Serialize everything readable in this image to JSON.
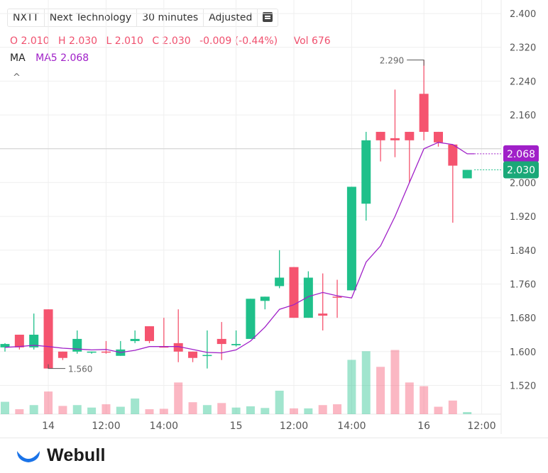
{
  "toolbar": {
    "symbol": "NXTT",
    "name": "Next Technology",
    "interval": "30 minutes",
    "adjust": "Adjusted",
    "menu_icon": "menu-icon"
  },
  "ohlc": {
    "open": "O 2.010",
    "high": "H 2.030",
    "low": "L 2.010",
    "close": "C 2.030",
    "change": "-0.009 (-0.44%)",
    "volume": "Vol 676"
  },
  "ma": {
    "label": "MA",
    "value": "MA5 2.068"
  },
  "collapse_icon": "chevron-up-icon",
  "price_tags": {
    "ma5": "2.068",
    "last": "2.030"
  },
  "annotations": {
    "high": "2.290",
    "low": "1.560"
  },
  "logo": {
    "text": "Webull",
    "icon": "webull-logo-icon"
  },
  "colors": {
    "up": "#1fc08a",
    "down": "#f5546f",
    "ma5": "#a020c8"
  },
  "chart_data": {
    "type": "candlestick",
    "y_ticks": [
      "2.400",
      "2.320",
      "2.240",
      "2.160",
      "2.080",
      "2.000",
      "1.920",
      "1.840",
      "1.760",
      "1.680",
      "1.600",
      "1.520"
    ],
    "ylim": [
      1.452,
      2.432
    ],
    "x_ticks": [
      {
        "label": "14",
        "index": 3
      },
      {
        "label": "12:00",
        "index": 7
      },
      {
        "label": "14:00",
        "index": 11
      },
      {
        "label": "15",
        "index": 16
      },
      {
        "label": "12:00",
        "index": 20
      },
      {
        "label": "14:00",
        "index": 24
      },
      {
        "label": "16",
        "index": 29
      },
      {
        "label": "12:00",
        "index": 33
      }
    ],
    "candles": [
      {
        "o": 1.61,
        "h": 1.62,
        "l": 1.6,
        "c": 1.618
      },
      {
        "o": 1.64,
        "h": 1.64,
        "l": 1.605,
        "c": 1.61
      },
      {
        "o": 1.61,
        "h": 1.69,
        "l": 1.605,
        "c": 1.64
      },
      {
        "o": 1.7,
        "h": 1.7,
        "l": 1.56,
        "c": 1.56
      },
      {
        "o": 1.6,
        "h": 1.6,
        "l": 1.58,
        "c": 1.585
      },
      {
        "o": 1.6,
        "h": 1.65,
        "l": 1.595,
        "c": 1.63
      },
      {
        "o": 1.6,
        "h": 1.6,
        "l": 1.595,
        "c": 1.6
      },
      {
        "o": 1.6,
        "h": 1.625,
        "l": 1.595,
        "c": 1.598
      },
      {
        "o": 1.59,
        "h": 1.625,
        "l": 1.59,
        "c": 1.605
      },
      {
        "o": 1.625,
        "h": 1.65,
        "l": 1.62,
        "c": 1.63
      },
      {
        "o": 1.66,
        "h": 1.66,
        "l": 1.62,
        "c": 1.625
      },
      {
        "o": 1.612,
        "h": 1.68,
        "l": 1.61,
        "c": 1.61
      },
      {
        "o": 1.62,
        "h": 1.7,
        "l": 1.575,
        "c": 1.6
      },
      {
        "o": 1.6,
        "h": 1.6,
        "l": 1.575,
        "c": 1.585
      },
      {
        "o": 1.59,
        "h": 1.65,
        "l": 1.56,
        "c": 1.592
      },
      {
        "o": 1.63,
        "h": 1.67,
        "l": 1.58,
        "c": 1.618
      },
      {
        "o": 1.615,
        "h": 1.65,
        "l": 1.612,
        "c": 1.618
      },
      {
        "o": 1.63,
        "h": 1.725,
        "l": 1.63,
        "c": 1.725
      },
      {
        "o": 1.72,
        "h": 1.73,
        "l": 1.7,
        "c": 1.73
      },
      {
        "o": 1.755,
        "h": 1.84,
        "l": 1.75,
        "c": 1.775
      },
      {
        "o": 1.8,
        "h": 1.8,
        "l": 1.68,
        "c": 1.68
      },
      {
        "o": 1.68,
        "h": 1.79,
        "l": 1.68,
        "c": 1.775
      },
      {
        "o": 1.69,
        "h": 1.785,
        "l": 1.65,
        "c": 1.685
      },
      {
        "o": 1.73,
        "h": 1.77,
        "l": 1.68,
        "c": 1.728
      },
      {
        "o": 1.745,
        "h": 1.99,
        "l": 1.745,
        "c": 1.99
      },
      {
        "o": 1.95,
        "h": 2.12,
        "l": 1.91,
        "c": 2.1
      },
      {
        "o": 2.12,
        "h": 2.12,
        "l": 2.05,
        "c": 2.1
      },
      {
        "o": 2.105,
        "h": 2.22,
        "l": 2.06,
        "c": 2.1
      },
      {
        "o": 2.12,
        "h": 2.12,
        "l": 2.0,
        "c": 2.1
      },
      {
        "o": 2.21,
        "h": 2.29,
        "l": 2.1,
        "c": 2.12
      },
      {
        "o": 2.12,
        "h": 2.12,
        "l": 2.085,
        "c": 2.095
      },
      {
        "o": 2.09,
        "h": 2.09,
        "l": 1.905,
        "c": 2.04
      },
      {
        "o": 2.01,
        "h": 2.03,
        "l": 2.01,
        "c": 2.03
      }
    ],
    "ma5": [
      1.61,
      1.612,
      1.615,
      1.612,
      1.608,
      1.606,
      1.604,
      1.605,
      1.598,
      1.603,
      1.612,
      1.612,
      1.612,
      1.605,
      1.598,
      1.597,
      1.604,
      1.625,
      1.658,
      1.7,
      1.711,
      1.73,
      1.74,
      1.732,
      1.727,
      1.812,
      1.85,
      1.92,
      2.0,
      2.08,
      2.095,
      2.09,
      2.068
    ],
    "volume": [
      0.3,
      0.12,
      0.22,
      0.55,
      0.2,
      0.22,
      0.16,
      0.24,
      0.18,
      0.38,
      0.12,
      0.13,
      0.77,
      0.29,
      0.22,
      0.27,
      0.16,
      0.19,
      0.15,
      0.57,
      0.14,
      0.14,
      0.22,
      0.24,
      1.32,
      1.53,
      1.15,
      1.56,
      0.77,
      0.68,
      0.18,
      0.33,
      0.05
    ]
  }
}
